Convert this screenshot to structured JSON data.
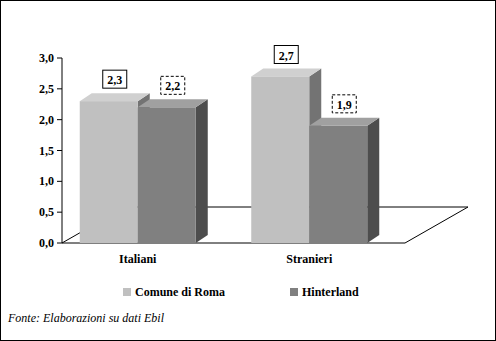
{
  "chart_data": {
    "type": "bar",
    "categories": [
      "Italiani",
      "Stranieri"
    ],
    "series": [
      {
        "name": "Comune di Roma",
        "color": "#c0c0c0",
        "values": [
          2.3,
          2.7
        ],
        "value_labels": [
          "2,3",
          "2,7"
        ]
      },
      {
        "name": "Hinterland",
        "color": "#808080",
        "values": [
          2.2,
          1.9
        ],
        "value_labels": [
          "2,2",
          "1,9"
        ]
      }
    ],
    "ylim": [
      0,
      3
    ],
    "yticks": [
      {
        "value": 0,
        "label": "0,0"
      },
      {
        "value": 0.5,
        "label": "0,5"
      },
      {
        "value": 1,
        "label": "1,0"
      },
      {
        "value": 1.5,
        "label": "1,5"
      },
      {
        "value": 2,
        "label": "2,0"
      },
      {
        "value": 2.5,
        "label": "2,5"
      },
      {
        "value": 3,
        "label": "3,0"
      }
    ],
    "grid": false,
    "legend": "bottom",
    "data_labels": true,
    "source": "Fonte: Elaborazioni su dati Ebil"
  }
}
